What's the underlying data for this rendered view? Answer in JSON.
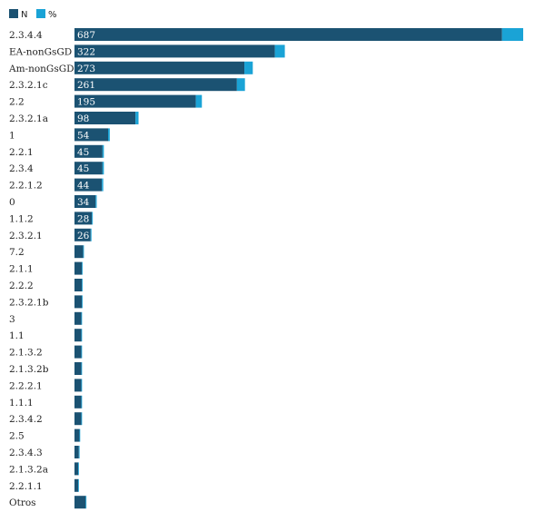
{
  "chart_data": {
    "type": "bar",
    "orientation": "horizontal",
    "stacked": true,
    "legend_position": "top-left",
    "colors": {
      "N": "#1b5272",
      "pct": "#1aa3d6"
    },
    "series": [
      {
        "name": "N"
      },
      {
        "name": "%"
      }
    ],
    "categories": [
      "2.3.4.4",
      "EA-nonGsGD",
      "Am-nonGsGD",
      "2.3.2.1c",
      "2.2",
      "2.3.2.1a",
      "1",
      "2.2.1",
      "2.3.4",
      "2.2.1.2",
      "0",
      "1.1.2",
      "2.3.2.1",
      "7.2",
      "2.1.1",
      "2.2.2",
      "2.3.2.1b",
      "3",
      "1.1",
      "2.1.3.2",
      "2.1.3.2b",
      "2.2.2.1",
      "1.1.1",
      "2.3.4.2",
      "2.5",
      "2.3.4.3",
      "2.1.3.2a",
      "2.2.1.1",
      "Otros"
    ],
    "n_values": [
      687,
      322,
      273,
      261,
      195,
      98,
      54,
      45,
      45,
      44,
      34,
      28,
      26,
      14,
      12,
      12,
      12,
      11,
      11,
      11,
      11,
      11,
      11,
      11,
      8,
      7,
      6,
      6,
      18
    ],
    "pct_values": [
      34.0,
      16.0,
      13.5,
      12.9,
      9.7,
      4.9,
      2.7,
      2.2,
      2.2,
      2.2,
      1.7,
      1.4,
      1.3,
      0.7,
      0.6,
      0.6,
      0.6,
      0.5,
      0.5,
      0.5,
      0.5,
      0.5,
      0.5,
      0.5,
      0.4,
      0.3,
      0.3,
      0.3,
      0.9
    ],
    "n_labels": [
      "687",
      "322",
      "273",
      "261",
      "195",
      "98",
      "54",
      "45",
      "45",
      "44",
      "34",
      "28",
      "26",
      "",
      "",
      "",
      "",
      "",
      "",
      "",
      "",
      "",
      "",
      "",
      "",
      "",
      "",
      "",
      ""
    ]
  }
}
